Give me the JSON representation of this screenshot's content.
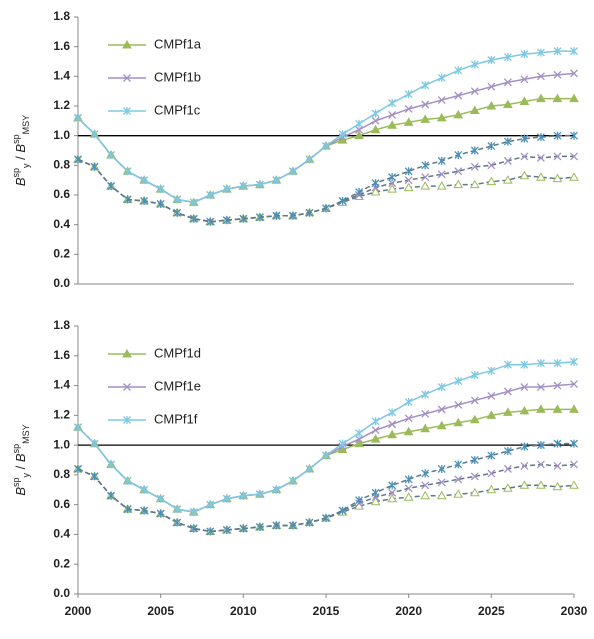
{
  "chart_data": [
    {
      "type": "line",
      "ylabel": [
        "B",
        "sp",
        "y",
        " / ",
        "B",
        "sp",
        "MSY"
      ],
      "x": [
        2000,
        2001,
        2002,
        2003,
        2004,
        2005,
        2006,
        2007,
        2008,
        2009,
        2010,
        2011,
        2012,
        2013,
        2014,
        2015,
        2016,
        2017,
        2018,
        2019,
        2020,
        2021,
        2022,
        2023,
        2024,
        2025,
        2026,
        2027,
        2028,
        2029,
        2030
      ],
      "xlim": [
        2000,
        2030
      ],
      "ylim": [
        0,
        1.8
      ],
      "yticks": [
        {
          "value": 0,
          "label": "0.0"
        },
        0.2,
        0.4,
        0.6,
        0.8,
        {
          "value": 1,
          "label": "1.0"
        },
        1.2,
        1.4,
        1.6,
        1.8
      ],
      "hline": 1,
      "legend": "upper left",
      "series": [
        {
          "name": "CMPf1a",
          "color": "#9bbb59",
          "marker": "triangle",
          "dash": false,
          "values": [
            1.12,
            1.01,
            0.87,
            0.76,
            0.7,
            0.64,
            0.57,
            0.55,
            0.6,
            0.64,
            0.66,
            0.67,
            0.7,
            0.76,
            0.84,
            0.93,
            0.97,
            1.0,
            1.04,
            1.07,
            1.09,
            1.11,
            1.12,
            1.14,
            1.17,
            1.2,
            1.21,
            1.23,
            1.25,
            1.25,
            1.25
          ]
        },
        {
          "name": "CMPf1b",
          "color": "#a48fc4",
          "marker": "x",
          "dash": false,
          "values": [
            1.12,
            1.01,
            0.87,
            0.76,
            0.7,
            0.64,
            0.57,
            0.55,
            0.6,
            0.64,
            0.66,
            0.67,
            0.7,
            0.76,
            0.84,
            0.93,
            0.99,
            1.04,
            1.1,
            1.14,
            1.18,
            1.21,
            1.24,
            1.27,
            1.3,
            1.33,
            1.36,
            1.38,
            1.4,
            1.41,
            1.42
          ]
        },
        {
          "name": "CMPf1c",
          "color": "#7ec8e3",
          "marker": "asterisk",
          "dash": false,
          "values": [
            1.12,
            1.01,
            0.87,
            0.76,
            0.7,
            0.64,
            0.57,
            0.55,
            0.6,
            0.64,
            0.66,
            0.67,
            0.7,
            0.76,
            0.84,
            0.93,
            1.01,
            1.08,
            1.15,
            1.22,
            1.28,
            1.34,
            1.39,
            1.44,
            1.48,
            1.51,
            1.53,
            1.55,
            1.56,
            1.57,
            1.57
          ]
        },
        {
          "color": "#9bbb59",
          "marker": "triangle",
          "dash": true,
          "values": [
            0.84,
            0.79,
            0.66,
            0.57,
            0.56,
            0.54,
            0.48,
            0.44,
            0.42,
            0.43,
            0.44,
            0.45,
            0.46,
            0.46,
            0.48,
            0.51,
            0.55,
            0.59,
            0.62,
            0.64,
            0.65,
            0.66,
            0.66,
            0.67,
            0.67,
            0.69,
            0.7,
            0.73,
            0.72,
            0.71,
            0.72
          ]
        },
        {
          "color": "#a48fc4",
          "marker": "x",
          "dash": true,
          "values": [
            0.84,
            0.79,
            0.66,
            0.57,
            0.56,
            0.54,
            0.48,
            0.44,
            0.42,
            0.43,
            0.44,
            0.45,
            0.46,
            0.46,
            0.48,
            0.51,
            0.56,
            0.6,
            0.65,
            0.68,
            0.7,
            0.72,
            0.74,
            0.76,
            0.79,
            0.8,
            0.83,
            0.86,
            0.85,
            0.86,
            0.86
          ]
        },
        {
          "color": "#4a90b8",
          "marker": "asterisk",
          "dash": true,
          "values": [
            0.84,
            0.79,
            0.66,
            0.57,
            0.56,
            0.54,
            0.48,
            0.44,
            0.42,
            0.43,
            0.44,
            0.45,
            0.46,
            0.46,
            0.48,
            0.51,
            0.56,
            0.62,
            0.68,
            0.72,
            0.76,
            0.8,
            0.83,
            0.87,
            0.9,
            0.93,
            0.96,
            0.98,
            0.99,
            1.0,
            1.0
          ]
        }
      ]
    },
    {
      "type": "line",
      "ylabel": [
        "B",
        "sp",
        "y",
        " / ",
        "B",
        "sp",
        "MSY"
      ],
      "x": [
        2000,
        2001,
        2002,
        2003,
        2004,
        2005,
        2006,
        2007,
        2008,
        2009,
        2010,
        2011,
        2012,
        2013,
        2014,
        2015,
        2016,
        2017,
        2018,
        2019,
        2020,
        2021,
        2022,
        2023,
        2024,
        2025,
        2026,
        2027,
        2028,
        2029,
        2030
      ],
      "xlim": [
        2000,
        2030
      ],
      "xticks": [
        2000,
        2005,
        2010,
        2015,
        2020,
        2025,
        2030
      ],
      "ylim": [
        0,
        1.8
      ],
      "yticks": [
        {
          "value": 0,
          "label": "0.0"
        },
        0.2,
        0.4,
        0.6,
        0.8,
        {
          "value": 1,
          "label": "1.0"
        },
        1.2,
        1.4,
        1.6,
        1.8
      ],
      "hline": 1,
      "legend": "upper left",
      "series": [
        {
          "name": "CMPf1d",
          "color": "#9bbb59",
          "marker": "triangle",
          "dash": false,
          "values": [
            1.12,
            1.01,
            0.87,
            0.76,
            0.7,
            0.64,
            0.57,
            0.55,
            0.6,
            0.64,
            0.66,
            0.67,
            0.7,
            0.76,
            0.84,
            0.93,
            0.97,
            1.01,
            1.04,
            1.07,
            1.09,
            1.11,
            1.13,
            1.15,
            1.17,
            1.2,
            1.22,
            1.23,
            1.24,
            1.24,
            1.24
          ]
        },
        {
          "name": "CMPf1e",
          "color": "#a48fc4",
          "marker": "x",
          "dash": false,
          "values": [
            1.12,
            1.01,
            0.87,
            0.76,
            0.7,
            0.64,
            0.57,
            0.55,
            0.6,
            0.64,
            0.66,
            0.67,
            0.7,
            0.76,
            0.84,
            0.93,
            0.99,
            1.04,
            1.1,
            1.14,
            1.18,
            1.21,
            1.24,
            1.27,
            1.3,
            1.33,
            1.36,
            1.39,
            1.39,
            1.4,
            1.41
          ]
        },
        {
          "name": "CMPf1f",
          "color": "#7ec8e3",
          "marker": "asterisk",
          "dash": false,
          "values": [
            1.12,
            1.01,
            0.87,
            0.76,
            0.7,
            0.64,
            0.57,
            0.55,
            0.6,
            0.64,
            0.66,
            0.67,
            0.7,
            0.76,
            0.84,
            0.93,
            1.01,
            1.08,
            1.16,
            1.22,
            1.29,
            1.34,
            1.39,
            1.43,
            1.47,
            1.5,
            1.54,
            1.54,
            1.55,
            1.55,
            1.56
          ]
        },
        {
          "color": "#9bbb59",
          "marker": "triangle",
          "dash": true,
          "values": [
            0.84,
            0.79,
            0.66,
            0.57,
            0.56,
            0.54,
            0.48,
            0.44,
            0.42,
            0.43,
            0.44,
            0.45,
            0.46,
            0.46,
            0.48,
            0.51,
            0.55,
            0.59,
            0.62,
            0.64,
            0.65,
            0.66,
            0.66,
            0.67,
            0.68,
            0.7,
            0.71,
            0.73,
            0.73,
            0.72,
            0.73
          ]
        },
        {
          "color": "#a48fc4",
          "marker": "x",
          "dash": true,
          "values": [
            0.84,
            0.79,
            0.66,
            0.57,
            0.56,
            0.54,
            0.48,
            0.44,
            0.42,
            0.43,
            0.44,
            0.45,
            0.46,
            0.46,
            0.48,
            0.51,
            0.56,
            0.61,
            0.65,
            0.68,
            0.71,
            0.73,
            0.75,
            0.77,
            0.79,
            0.81,
            0.84,
            0.86,
            0.87,
            0.86,
            0.87
          ]
        },
        {
          "color": "#4a90b8",
          "marker": "asterisk",
          "dash": true,
          "values": [
            0.84,
            0.79,
            0.66,
            0.57,
            0.56,
            0.54,
            0.48,
            0.44,
            0.42,
            0.43,
            0.44,
            0.45,
            0.46,
            0.46,
            0.48,
            0.51,
            0.56,
            0.63,
            0.68,
            0.73,
            0.77,
            0.81,
            0.84,
            0.87,
            0.9,
            0.93,
            0.96,
            0.99,
            1.0,
            1.01,
            1.01
          ]
        }
      ]
    }
  ]
}
